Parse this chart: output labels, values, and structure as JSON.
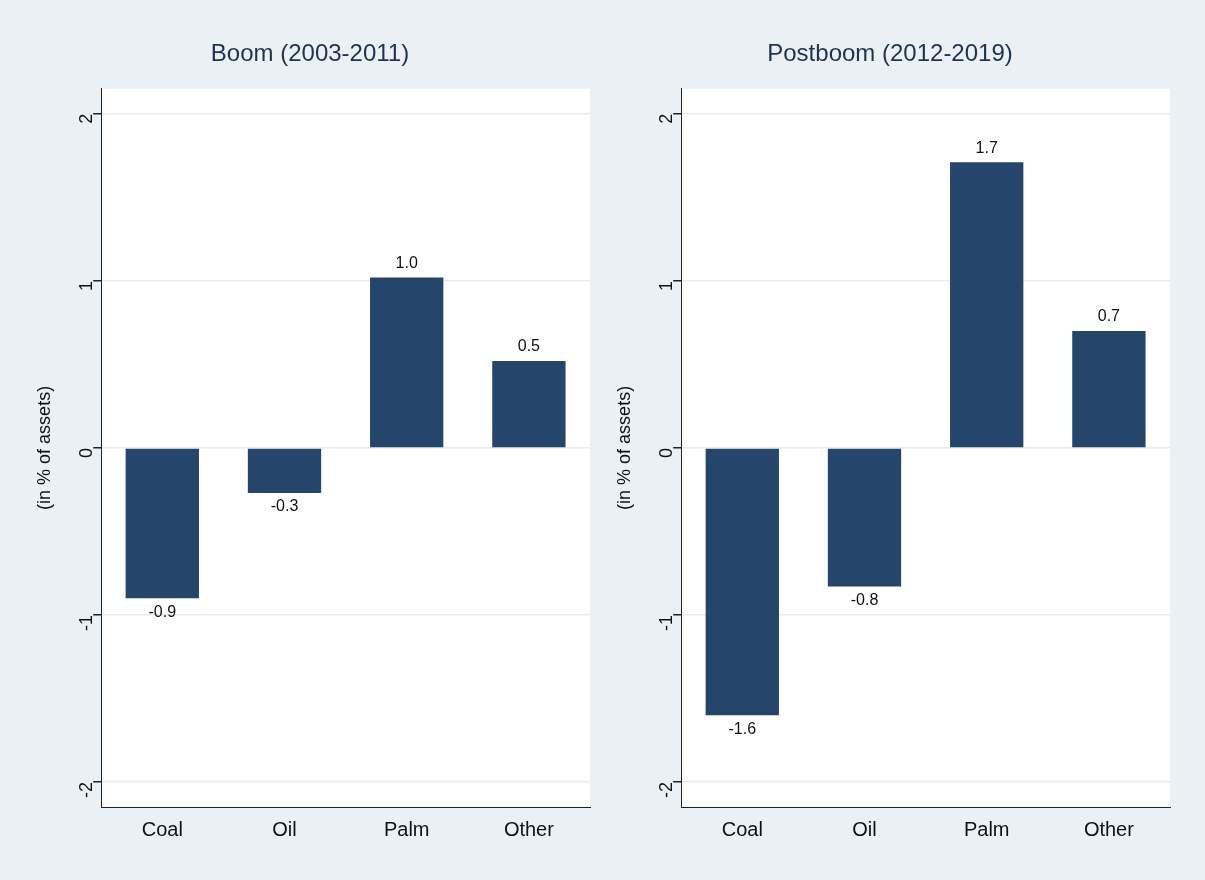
{
  "chart_data": [
    {
      "type": "bar",
      "title": "Boom (2003-2011)",
      "ylabel": "(in % of assets)",
      "categories": [
        "Coal",
        "Oil",
        "Palm",
        "Other"
      ],
      "values": [
        -0.9,
        -0.27,
        1.02,
        0.52
      ],
      "value_labels": [
        "-0.9",
        "-0.3",
        "1.0",
        "0.5"
      ],
      "color": "#26456b",
      "ylim": [
        -2.15,
        2.15
      ],
      "yticks": [
        -2,
        -1,
        0,
        1,
        2
      ],
      "grid": "y",
      "legend": false
    },
    {
      "type": "bar",
      "title": "Postboom (2012-2019)",
      "ylabel": "(in % of assets)",
      "categories": [
        "Coal",
        "Oil",
        "Palm",
        "Other"
      ],
      "values": [
        -1.6,
        -0.83,
        1.71,
        0.7
      ],
      "value_labels": [
        "-1.6",
        "-0.8",
        "1.7",
        "0.7"
      ],
      "color": "#26456b",
      "ylim": [
        -2.15,
        2.15
      ],
      "yticks": [
        -2,
        -1,
        0,
        1,
        2
      ],
      "grid": "y",
      "legend": false
    }
  ]
}
